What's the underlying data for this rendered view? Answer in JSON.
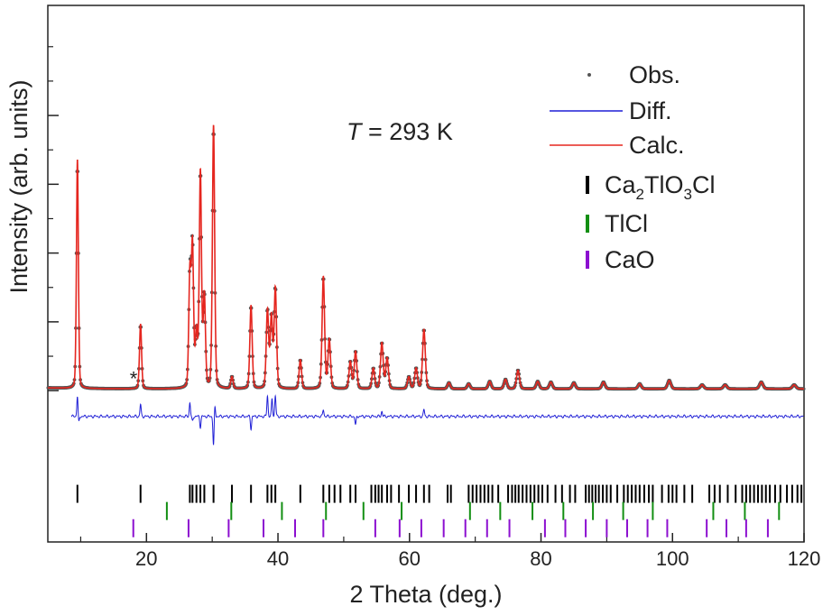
{
  "chart_data": {
    "type": "line",
    "xlabel": "2 Theta (deg.)",
    "ylabel": "Intensity (arb. units)",
    "xlim": [
      5,
      120
    ],
    "xticks": [
      20,
      40,
      60,
      80,
      100,
      120
    ],
    "x_minor_step": 10,
    "ylim": [
      -4.4,
      11.2
    ],
    "y_major_ticks": [
      0,
      2,
      4,
      6,
      8
    ],
    "y_minor_ticks": [
      1,
      3,
      5,
      7,
      9,
      10
    ],
    "grid": false,
    "annotation": {
      "prefix": "T",
      "text": " = 293 K"
    },
    "impurity_marker": {
      "label": "*",
      "x": 18.0,
      "y": 0.25
    },
    "legend": {
      "position": "top-right",
      "entries": [
        {
          "name": "Obs.",
          "symbol": "dot",
          "color": "#555555"
        },
        {
          "name": "Diff.",
          "symbol": "line",
          "color": "#1f1fd6"
        },
        {
          "name": "Calc.",
          "symbol": "line",
          "color": "#e5261f"
        },
        {
          "name": "Ca2TlO3Cl",
          "parts": [
            "Ca",
            "2",
            "TlO",
            "3",
            "Cl"
          ],
          "symbol": "tick",
          "color": "#000000"
        },
        {
          "name": "TlCl",
          "symbol": "tick",
          "color": "#138f13"
        },
        {
          "name": "CaO",
          "symbol": "tick",
          "color": "#8c0fd0"
        }
      ]
    },
    "series": [
      {
        "name": "Obs.",
        "color": "#555555"
      },
      {
        "name": "Calc.",
        "color": "#e5261f"
      },
      {
        "name": "Diff.",
        "color": "#1f1fd6"
      }
    ],
    "background_level": 0.05,
    "peaks": [
      {
        "x": 9.5,
        "h": 6.75
      },
      {
        "x": 19.1,
        "h": 1.9
      },
      {
        "x": 26.6,
        "h": 3.3
      },
      {
        "x": 27.0,
        "h": 4.1
      },
      {
        "x": 27.6,
        "h": 1.6
      },
      {
        "x": 28.2,
        "h": 6.35
      },
      {
        "x": 28.8,
        "h": 2.7
      },
      {
        "x": 30.2,
        "h": 7.75
      },
      {
        "x": 33.0,
        "h": 0.35
      },
      {
        "x": 35.9,
        "h": 2.45
      },
      {
        "x": 38.4,
        "h": 2.3
      },
      {
        "x": 39.0,
        "h": 2.1
      },
      {
        "x": 39.6,
        "h": 2.95
      },
      {
        "x": 43.4,
        "h": 0.85
      },
      {
        "x": 46.9,
        "h": 3.3
      },
      {
        "x": 47.8,
        "h": 1.45
      },
      {
        "x": 51.0,
        "h": 0.8
      },
      {
        "x": 51.8,
        "h": 1.1
      },
      {
        "x": 54.5,
        "h": 0.6
      },
      {
        "x": 55.8,
        "h": 1.35
      },
      {
        "x": 56.6,
        "h": 0.9
      },
      {
        "x": 59.9,
        "h": 0.35
      },
      {
        "x": 61.0,
        "h": 0.6
      },
      {
        "x": 62.2,
        "h": 1.75
      },
      {
        "x": 66.0,
        "h": 0.18
      },
      {
        "x": 69.0,
        "h": 0.15
      },
      {
        "x": 72.2,
        "h": 0.22
      },
      {
        "x": 74.6,
        "h": 0.28
      },
      {
        "x": 76.5,
        "h": 0.55
      },
      {
        "x": 79.5,
        "h": 0.22
      },
      {
        "x": 81.5,
        "h": 0.2
      },
      {
        "x": 85.0,
        "h": 0.18
      },
      {
        "x": 89.5,
        "h": 0.2
      },
      {
        "x": 95.0,
        "h": 0.15
      },
      {
        "x": 99.5,
        "h": 0.25
      },
      {
        "x": 104.5,
        "h": 0.12
      },
      {
        "x": 108.0,
        "h": 0.12
      },
      {
        "x": 113.5,
        "h": 0.2
      },
      {
        "x": 118.5,
        "h": 0.12
      }
    ],
    "difference": {
      "baseline": -0.75,
      "features": [
        {
          "x": 9.5,
          "dy": 0.6
        },
        {
          "x": 9.7,
          "dy": -0.2
        },
        {
          "x": 19.1,
          "dy": 0.35
        },
        {
          "x": 26.6,
          "dy": 0.4
        },
        {
          "x": 27.0,
          "dy": -0.15
        },
        {
          "x": 28.2,
          "dy": -0.3
        },
        {
          "x": 30.2,
          "dy": -0.85
        },
        {
          "x": 30.4,
          "dy": 0.3
        },
        {
          "x": 35.9,
          "dy": -0.35
        },
        {
          "x": 38.4,
          "dy": 0.6
        },
        {
          "x": 39.1,
          "dy": 0.5
        },
        {
          "x": 39.6,
          "dy": 0.6
        },
        {
          "x": 46.9,
          "dy": 0.2
        },
        {
          "x": 51.8,
          "dy": -0.25
        },
        {
          "x": 55.8,
          "dy": 0.15
        },
        {
          "x": 62.2,
          "dy": 0.2
        }
      ]
    },
    "reflection_ticks": {
      "Ca2TlO3Cl": {
        "y": -3.0,
        "positions": [
          9.5,
          19.1,
          26.6,
          27.0,
          27.6,
          28.2,
          28.8,
          30.2,
          33.0,
          35.9,
          38.4,
          39.0,
          39.6,
          43.4,
          46.9,
          47.8,
          48.6,
          49.5,
          51.0,
          51.8,
          54.2,
          54.8,
          55.3,
          55.8,
          56.6,
          57.2,
          58.4,
          59.9,
          61.0,
          62.2,
          63.0,
          65.8,
          66.3,
          69.0,
          69.6,
          70.2,
          70.8,
          71.4,
          72.0,
          72.6,
          73.5,
          75.0,
          75.6,
          76.1,
          76.6,
          77.2,
          77.8,
          78.4,
          79.0,
          79.6,
          80.2,
          81.0,
          82.2,
          83.2,
          84.4,
          85.2,
          86.8,
          87.3,
          87.8,
          88.3,
          88.8,
          89.4,
          90.0,
          90.6,
          91.6,
          92.6,
          93.2,
          93.8,
          94.4,
          95.0,
          95.7,
          96.4,
          97.0,
          98.4,
          99.4,
          100.0,
          100.6,
          101.8,
          103.0,
          105.6,
          106.4,
          107.2,
          108.4,
          109.6,
          110.6,
          111.2,
          111.8,
          112.4,
          113.0,
          113.6,
          114.2,
          114.8,
          115.6,
          116.4,
          117.4,
          118.2,
          119.0,
          119.6
        ]
      },
      "TlCl": {
        "y": -3.5,
        "positions": [
          23.1,
          32.9,
          40.6,
          47.3,
          53.0,
          58.8,
          69.2,
          73.8,
          78.7,
          83.4,
          87.9,
          92.5,
          97.0,
          106.2,
          111.0,
          116.2
        ]
      },
      "CaO": {
        "y": -4.0,
        "positions": [
          18.0,
          26.4,
          32.5,
          37.8,
          42.6,
          46.9,
          54.8,
          58.5,
          61.8,
          65.2,
          68.5,
          71.8,
          75.2,
          80.6,
          83.7,
          86.8,
          90.0,
          93.1,
          96.2,
          99.2,
          105.2,
          108.2,
          111.2,
          114.5
        ]
      }
    }
  }
}
